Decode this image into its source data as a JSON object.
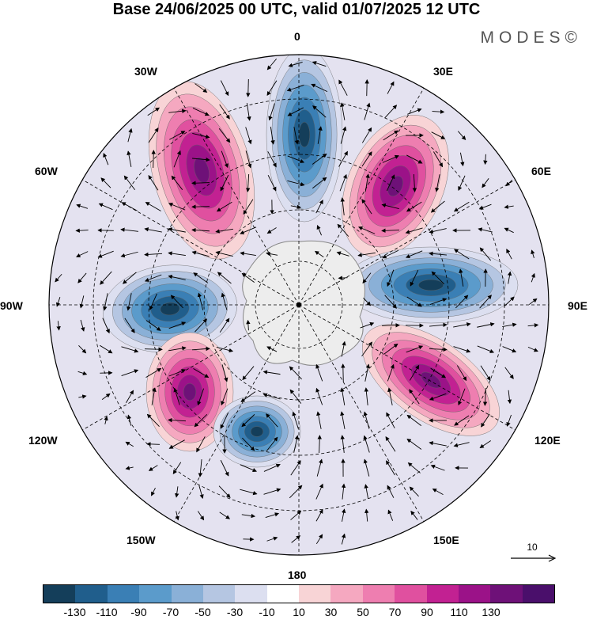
{
  "header": {
    "title": "Base 24/06/2025 00 UTC, valid 01/07/2025 12 UTC",
    "brand": "MODES©"
  },
  "map": {
    "projection": "south-polar-stereographic",
    "longitude_labels": {
      "top": "0",
      "top_right": "30E",
      "right_upper": "60E",
      "right": "90E",
      "right_lower": "120E",
      "bottom_right": "150E",
      "bottom": "180",
      "bottom_left": "150W",
      "left_lower": "120W",
      "left": "90W",
      "left_upper": "60W",
      "top_left": "30W"
    },
    "reference_vector": "10",
    "anomaly_centers": [
      {
        "name": "negative-0",
        "sign": "negative"
      },
      {
        "name": "positive-30w",
        "sign": "positive"
      },
      {
        "name": "positive-40e",
        "sign": "positive"
      },
      {
        "name": "negative-80e",
        "sign": "negative"
      },
      {
        "name": "positive-110e",
        "sign": "positive"
      },
      {
        "name": "negative-90w",
        "sign": "negative"
      },
      {
        "name": "positive-130w",
        "sign": "positive"
      },
      {
        "name": "negative-160w",
        "sign": "negative"
      }
    ]
  },
  "colorbar": {
    "colors": [
      "#143e5a",
      "#205e8c",
      "#3a7fb5",
      "#5b9bcb",
      "#8ab0d7",
      "#b5c6e2",
      "#dcdff0",
      "#ffffff",
      "#f8d4d6",
      "#f5a8c0",
      "#ee7eb0",
      "#e0509f",
      "#c22192",
      "#9b1288",
      "#6e1178",
      "#4a0f6b"
    ],
    "labels": [
      "-130",
      "-110",
      "-90",
      "-70",
      "-50",
      "-30",
      "-10",
      "10",
      "30",
      "50",
      "70",
      "90",
      "110",
      "130"
    ]
  }
}
